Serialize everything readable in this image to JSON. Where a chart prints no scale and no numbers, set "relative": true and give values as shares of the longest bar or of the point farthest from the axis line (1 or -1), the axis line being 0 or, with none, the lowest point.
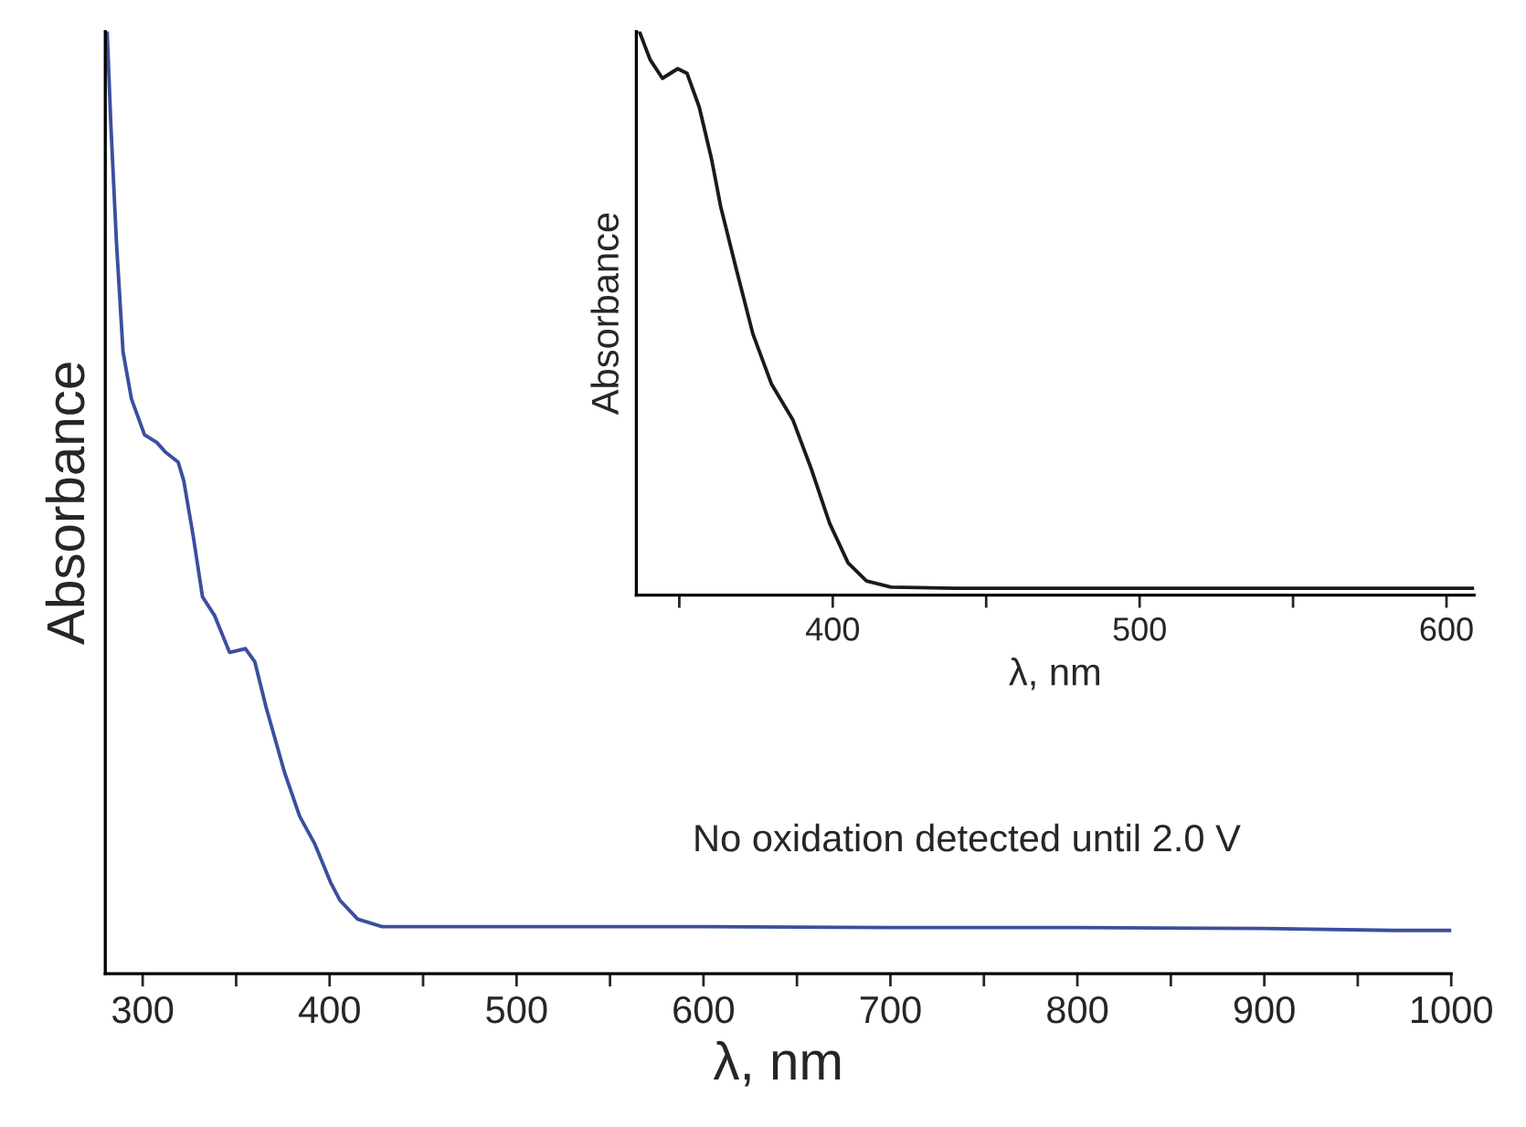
{
  "chart_data": [
    {
      "type": "line",
      "relative": true,
      "xlabel": "λ, nm",
      "ylabel": "Absorbance",
      "xlim": [
        280,
        1000
      ],
      "xticks": [
        300,
        {
          "value": 350,
          "label": null
        },
        400,
        {
          "value": 450,
          "label": null
        },
        500,
        {
          "value": 550,
          "label": null
        },
        600,
        {
          "value": 650,
          "label": null
        },
        700,
        {
          "value": 750,
          "label": null
        },
        800,
        {
          "value": 850,
          "label": null
        },
        900,
        {
          "value": 950,
          "label": null
        },
        1000
      ],
      "tick_labels": "x",
      "grid": false,
      "legend": false,
      "annotations": [
        "No oxidation detected until 2.0 V"
      ],
      "series": [
        {
          "color": "#3b4f9e",
          "x": [
            281,
            283,
            286,
            289.5,
            294,
            301,
            307.5,
            312,
            319,
            322,
            327,
            332,
            338.5,
            346.5,
            355,
            360,
            366,
            376,
            384,
            392,
            400.5,
            405.5,
            415,
            428,
            467,
            500,
            600,
            700,
            800,
            900,
            970,
            1000
          ],
          "values": [
            1.0,
            0.9,
            0.775,
            0.66,
            0.61,
            0.572,
            0.564,
            0.554,
            0.543,
            0.523,
            0.465,
            0.4,
            0.38,
            0.341,
            0.345,
            0.331,
            0.283,
            0.213,
            0.167,
            0.138,
            0.097,
            0.078,
            0.058,
            0.05,
            0.05,
            0.05,
            0.05,
            0.049,
            0.049,
            0.048,
            0.046,
            0.046
          ]
        }
      ]
    },
    {
      "type": "line",
      "relative": true,
      "xlabel": "λ, nm",
      "ylabel": "Absorbance",
      "xlim": [
        336,
        609
      ],
      "xticks": [
        {
          "value": 350,
          "label": null
        },
        400,
        {
          "value": 450,
          "label": null
        },
        500,
        {
          "value": 550,
          "label": null
        },
        600
      ],
      "tick_labels": "x",
      "grid": false,
      "legend": false,
      "series": [
        {
          "color": "#1a1a1a",
          "x": [
            337,
            340.5,
            344.5,
            349.5,
            352.5,
            356.5,
            360.5,
            363.5,
            368.5,
            374,
            380,
            387,
            393,
            399,
            405,
            411,
            419,
            440,
            480,
            520,
            560,
            600,
            609
          ],
          "values": [
            1.0,
            0.95,
            0.917,
            0.934,
            0.926,
            0.866,
            0.774,
            0.689,
            0.58,
            0.463,
            0.375,
            0.311,
            0.224,
            0.127,
            0.057,
            0.025,
            0.014,
            0.012,
            0.012,
            0.012,
            0.012,
            0.012,
            0.012
          ]
        }
      ]
    }
  ]
}
